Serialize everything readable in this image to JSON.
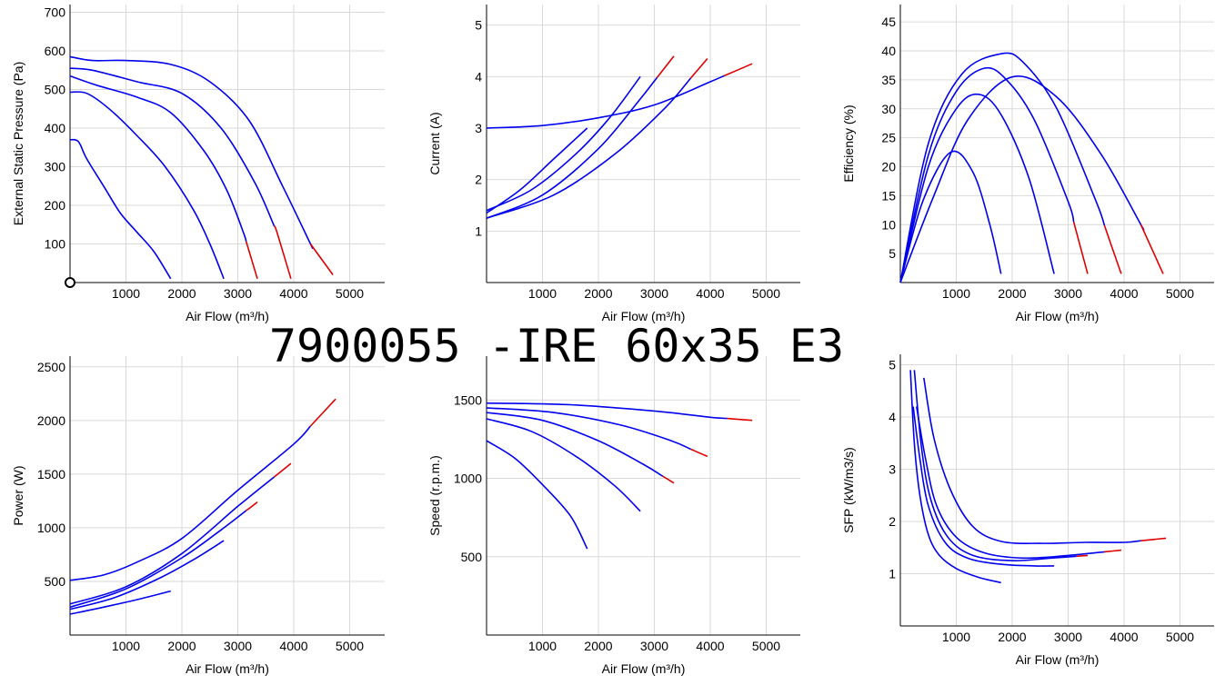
{
  "title": "7900055 -IRE 60x35 E3",
  "colors": {
    "curve": "#0000ee",
    "limit": "#e00000",
    "grid": "#d9d9d9"
  },
  "chart_data": [
    {
      "id": "pressure",
      "type": "line",
      "xlabel": "Air Flow (m³/h)",
      "ylabel": "External Static Pressure (Pa)",
      "xlim": [
        0,
        5500
      ],
      "ylim": [
        0,
        720
      ],
      "xticks": [
        1000,
        2000,
        3000,
        4000,
        5000
      ],
      "yticks": [
        100,
        200,
        300,
        400,
        500,
        600,
        700
      ],
      "marker": [
        0,
        0
      ],
      "series": [
        {
          "points": [
            [
              0,
              370
            ],
            [
              150,
              365
            ],
            [
              300,
              320
            ],
            [
              600,
              250
            ],
            [
              900,
              180
            ],
            [
              1200,
              130
            ],
            [
              1500,
              80
            ],
            [
              1800,
              10
            ]
          ],
          "red_from": null
        },
        {
          "points": [
            [
              0,
              493
            ],
            [
              300,
              490
            ],
            [
              700,
              450
            ],
            [
              1200,
              380
            ],
            [
              1700,
              300
            ],
            [
              2200,
              190
            ],
            [
              2500,
              100
            ],
            [
              2750,
              10
            ]
          ],
          "red_from": null
        },
        {
          "points": [
            [
              0,
              535
            ],
            [
              500,
              510
            ],
            [
              1200,
              480
            ],
            [
              1800,
              440
            ],
            [
              2400,
              340
            ],
            [
              2800,
              240
            ],
            [
              3100,
              130
            ],
            [
              3350,
              10
            ]
          ],
          "red_from": 3150
        },
        {
          "points": [
            [
              0,
              555
            ],
            [
              400,
              550
            ],
            [
              1200,
              520
            ],
            [
              2000,
              490
            ],
            [
              2700,
              400
            ],
            [
              3300,
              260
            ],
            [
              3700,
              130
            ],
            [
              3950,
              10
            ]
          ],
          "red_from": 3650
        },
        {
          "points": [
            [
              0,
              585
            ],
            [
              400,
              575
            ],
            [
              1000,
              575
            ],
            [
              1800,
              565
            ],
            [
              2500,
              520
            ],
            [
              3200,
              420
            ],
            [
              3800,
              250
            ],
            [
              4300,
              100
            ],
            [
              4700,
              20
            ]
          ],
          "red_from": 4300
        }
      ]
    },
    {
      "id": "current",
      "type": "line",
      "xlabel": "Air Flow (m³/h)",
      "ylabel": "Current (A)",
      "xlim": [
        0,
        5500
      ],
      "ylim": [
        0,
        5.4
      ],
      "xticks": [
        1000,
        2000,
        3000,
        4000,
        5000
      ],
      "yticks": [
        1,
        2,
        3,
        4,
        5
      ],
      "series": [
        {
          "points": [
            [
              0,
              1.35
            ],
            [
              600,
              1.8
            ],
            [
              1200,
              2.4
            ],
            [
              1800,
              3.0
            ]
          ],
          "red_from": null
        },
        {
          "points": [
            [
              0,
              1.4
            ],
            [
              800,
              1.8
            ],
            [
              1600,
              2.5
            ],
            [
              2200,
              3.2
            ],
            [
              2750,
              4.0
            ]
          ],
          "red_from": null
        },
        {
          "points": [
            [
              0,
              1.25
            ],
            [
              1000,
              1.7
            ],
            [
              2000,
              2.6
            ],
            [
              2700,
              3.5
            ],
            [
              3350,
              4.4
            ]
          ],
          "red_from": 3050
        },
        {
          "points": [
            [
              0,
              1.25
            ],
            [
              1200,
              1.7
            ],
            [
              2300,
              2.5
            ],
            [
              3200,
              3.4
            ],
            [
              3950,
              4.35
            ]
          ],
          "red_from": 3650
        },
        {
          "points": [
            [
              0,
              3.0
            ],
            [
              1000,
              3.05
            ],
            [
              2000,
              3.2
            ],
            [
              3000,
              3.45
            ],
            [
              4000,
              3.9
            ],
            [
              4750,
              4.25
            ]
          ],
          "red_from": 4250
        }
      ]
    },
    {
      "id": "efficiency",
      "type": "line",
      "xlabel": "Air Flow (m³/h)",
      "ylabel": "Efficiency (%)",
      "xlim": [
        0,
        5500
      ],
      "ylim": [
        0,
        48
      ],
      "xticks": [
        1000,
        2000,
        3000,
        4000,
        5000
      ],
      "yticks": [
        5,
        10,
        15,
        20,
        25,
        30,
        35,
        40,
        45
      ],
      "series": [
        {
          "points": [
            [
              0,
              0
            ],
            [
              400,
              14
            ],
            [
              900,
              22.5
            ],
            [
              1300,
              19
            ],
            [
              1600,
              10
            ],
            [
              1800,
              1.5
            ]
          ],
          "red_from": null
        },
        {
          "points": [
            [
              0,
              0
            ],
            [
              500,
              20
            ],
            [
              1000,
              30
            ],
            [
              1400,
              32.5
            ],
            [
              1800,
              29
            ],
            [
              2300,
              18
            ],
            [
              2750,
              1.5
            ]
          ],
          "red_from": null
        },
        {
          "points": [
            [
              0,
              0
            ],
            [
              500,
              22
            ],
            [
              1000,
              33
            ],
            [
              1500,
              37
            ],
            [
              1900,
              35
            ],
            [
              2400,
              28
            ],
            [
              3000,
              14
            ],
            [
              3350,
              1.5
            ]
          ],
          "red_from": 3100
        },
        {
          "points": [
            [
              0,
              0
            ],
            [
              500,
              24
            ],
            [
              1100,
              36
            ],
            [
              1800,
              39.5
            ],
            [
              2200,
              38
            ],
            [
              2800,
              30
            ],
            [
              3500,
              14
            ],
            [
              3950,
              1.5
            ]
          ],
          "red_from": 3650
        },
        {
          "points": [
            [
              0,
              0
            ],
            [
              600,
              15
            ],
            [
              1200,
              28
            ],
            [
              2000,
              35.5
            ],
            [
              2800,
              32
            ],
            [
              3600,
              22
            ],
            [
              4300,
              10
            ],
            [
              4700,
              1.5
            ]
          ],
          "red_from": 4300
        }
      ]
    },
    {
      "id": "power",
      "type": "line",
      "xlabel": "Air Flow (m³/h)",
      "ylabel": "Power (W)",
      "xlim": [
        0,
        5500
      ],
      "ylim": [
        0,
        2600
      ],
      "xticks": [
        1000,
        2000,
        3000,
        4000,
        5000
      ],
      "yticks": [
        500,
        1000,
        1500,
        2000,
        2500
      ],
      "series": [
        {
          "points": [
            [
              0,
              195
            ],
            [
              600,
              260
            ],
            [
              1200,
              330
            ],
            [
              1800,
              410
            ]
          ],
          "red_from": null
        },
        {
          "points": [
            [
              0,
              240
            ],
            [
              800,
              350
            ],
            [
              1600,
              530
            ],
            [
              2200,
              700
            ],
            [
              2750,
              880
            ]
          ],
          "red_from": null
        },
        {
          "points": [
            [
              0,
              260
            ],
            [
              1000,
              430
            ],
            [
              2000,
              720
            ],
            [
              2700,
              980
            ],
            [
              3350,
              1240
            ]
          ],
          "red_from": 3150
        },
        {
          "points": [
            [
              0,
              290
            ],
            [
              1000,
              450
            ],
            [
              2000,
              760
            ],
            [
              3000,
              1200
            ],
            [
              3950,
              1600
            ]
          ],
          "red_from": 3650
        },
        {
          "points": [
            [
              0,
              510
            ],
            [
              600,
              560
            ],
            [
              1200,
              680
            ],
            [
              2000,
              900
            ],
            [
              3000,
              1350
            ],
            [
              4000,
              1780
            ],
            [
              4750,
              2200
            ]
          ],
          "red_from": 4300
        }
      ]
    },
    {
      "id": "speed",
      "type": "line",
      "xlabel": "Air Flow (m³/h)",
      "ylabel": "Speed (r.p.m.)",
      "xlim": [
        0,
        5500
      ],
      "ylim": [
        0,
        1780
      ],
      "xticks": [
        1000,
        2000,
        3000,
        4000,
        5000
      ],
      "yticks": [
        500,
        1000,
        1500
      ],
      "series": [
        {
          "points": [
            [
              0,
              1240
            ],
            [
              500,
              1130
            ],
            [
              1000,
              960
            ],
            [
              1500,
              760
            ],
            [
              1800,
              550
            ]
          ],
          "red_from": null
        },
        {
          "points": [
            [
              0,
              1380
            ],
            [
              800,
              1300
            ],
            [
              1600,
              1140
            ],
            [
              2300,
              950
            ],
            [
              2750,
              790
            ]
          ],
          "red_from": null
        },
        {
          "points": [
            [
              0,
              1420
            ],
            [
              1000,
              1370
            ],
            [
              2000,
              1240
            ],
            [
              2800,
              1090
            ],
            [
              3350,
              970
            ]
          ],
          "red_from": 3150
        },
        {
          "points": [
            [
              0,
              1450
            ],
            [
              1200,
              1420
            ],
            [
              2400,
              1340
            ],
            [
              3300,
              1240
            ],
            [
              3950,
              1140
            ]
          ],
          "red_from": 3650
        },
        {
          "points": [
            [
              0,
              1480
            ],
            [
              1500,
              1470
            ],
            [
              3000,
              1430
            ],
            [
              4000,
              1390
            ],
            [
              4750,
              1370
            ]
          ],
          "red_from": 4300
        }
      ]
    },
    {
      "id": "sfp",
      "type": "line",
      "xlabel": "Air Flow (m³/h)",
      "ylabel": "SFP (kW/m3/s)",
      "xlim": [
        0,
        5500
      ],
      "ylim": [
        0,
        5.2
      ],
      "xticks": [
        1000,
        2000,
        3000,
        4000,
        5000
      ],
      "yticks": [
        1,
        2,
        3,
        4,
        5
      ],
      "series": [
        {
          "points": [
            [
              180,
              4.9
            ],
            [
              250,
              3.5
            ],
            [
              350,
              2.5
            ],
            [
              500,
              1.75
            ],
            [
              700,
              1.35
            ],
            [
              1000,
              1.1
            ],
            [
              1400,
              0.93
            ],
            [
              1800,
              0.83
            ]
          ],
          "red_from": null
        },
        {
          "points": [
            [
              230,
              4.2
            ],
            [
              350,
              3.2
            ],
            [
              500,
              2.3
            ],
            [
              800,
              1.6
            ],
            [
              1200,
              1.3
            ],
            [
              1800,
              1.18
            ],
            [
              2400,
              1.15
            ],
            [
              2750,
              1.15
            ]
          ],
          "red_from": null
        },
        {
          "points": [
            [
              250,
              4.9
            ],
            [
              380,
              3.4
            ],
            [
              550,
              2.4
            ],
            [
              850,
              1.7
            ],
            [
              1300,
              1.35
            ],
            [
              2000,
              1.25
            ],
            [
              2700,
              1.3
            ],
            [
              3350,
              1.35
            ]
          ],
          "red_from": 3150
        },
        {
          "points": [
            [
              290,
              4.2
            ],
            [
              450,
              3.2
            ],
            [
              650,
              2.3
            ],
            [
              1000,
              1.7
            ],
            [
              1500,
              1.4
            ],
            [
              2200,
              1.3
            ],
            [
              3000,
              1.35
            ],
            [
              3950,
              1.45
            ]
          ],
          "red_from": 3650
        },
        {
          "points": [
            [
              420,
              4.75
            ],
            [
              600,
              3.6
            ],
            [
              900,
              2.6
            ],
            [
              1300,
              1.9
            ],
            [
              1800,
              1.62
            ],
            [
              2500,
              1.58
            ],
            [
              3300,
              1.6
            ],
            [
              4000,
              1.6
            ],
            [
              4750,
              1.68
            ]
          ],
          "red_from": 4300
        }
      ]
    }
  ]
}
